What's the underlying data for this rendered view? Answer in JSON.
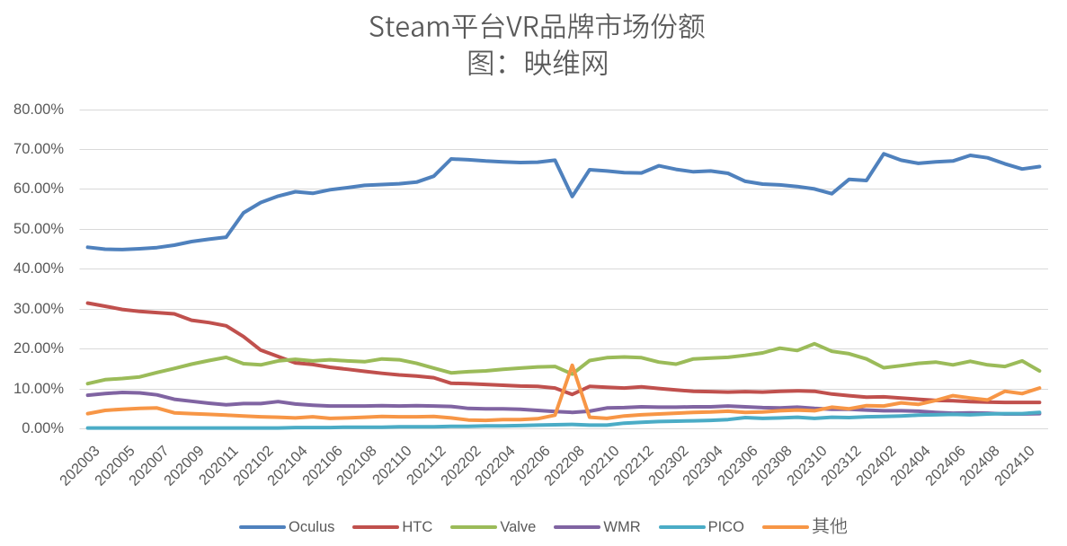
{
  "chart_data": {
    "type": "line",
    "title": "Steam平台VR品牌市场份额",
    "subtitle": "图：映维网",
    "categories": [
      "202003",
      "202004",
      "202005",
      "202006",
      "202007",
      "202008",
      "202009",
      "202010",
      "202011",
      "202012",
      "202102",
      "202103",
      "202104",
      "202105",
      "202106",
      "202107",
      "202108",
      "202109",
      "202110",
      "202111",
      "202112",
      "202201",
      "202202",
      "202203",
      "202204",
      "202205",
      "202206",
      "202207",
      "202208",
      "202209",
      "202210",
      "202211",
      "202212",
      "202301",
      "202302",
      "202303",
      "202304",
      "202305",
      "202306",
      "202307",
      "202308",
      "202309",
      "202310",
      "202311",
      "202312",
      "202401",
      "202402",
      "202403",
      "202404",
      "202405",
      "202406",
      "202407",
      "202408",
      "202409",
      "202410",
      "202411"
    ],
    "x_tick_step": 2,
    "ylim": [
      0,
      80
    ],
    "y_tick_interval": 10,
    "y_tick_labels": [
      "0.00%",
      "10.00%",
      "20.00%",
      "30.00%",
      "40.00%",
      "50.00%",
      "60.00%",
      "70.00%",
      "80.00%"
    ],
    "grid": "horizontal",
    "legend_position": "bottom",
    "series": [
      {
        "name": "Oculus",
        "color": "#4F81BD",
        "values": [
          45.4,
          44.9,
          44.8,
          45.0,
          45.3,
          45.9,
          46.8,
          47.4,
          47.9,
          54.0,
          56.6,
          58.2,
          59.3,
          58.9,
          59.8,
          60.3,
          60.9,
          61.1,
          61.3,
          61.7,
          63.2,
          67.5,
          67.3,
          67.0,
          66.8,
          66.6,
          66.7,
          67.2,
          58.1,
          64.8,
          64.5,
          64.1,
          64.0,
          65.8,
          64.9,
          64.3,
          64.5,
          63.9,
          61.9,
          61.2,
          61.0,
          60.6,
          60.0,
          58.8,
          62.4,
          62.1,
          68.8,
          67.2,
          66.4,
          66.8,
          67.0,
          68.4,
          67.8,
          66.3,
          65.0,
          65.6
        ]
      },
      {
        "name": "HTC",
        "color": "#C0504D",
        "values": [
          31.4,
          30.6,
          29.8,
          29.3,
          29.0,
          28.7,
          27.1,
          26.5,
          25.7,
          23.0,
          19.6,
          18.0,
          16.4,
          16.0,
          15.3,
          14.8,
          14.3,
          13.8,
          13.4,
          13.1,
          12.7,
          11.3,
          11.2,
          11.0,
          10.8,
          10.6,
          10.5,
          10.1,
          8.5,
          10.5,
          10.3,
          10.1,
          10.4,
          10.0,
          9.6,
          9.3,
          9.2,
          9.1,
          9.2,
          9.1,
          9.3,
          9.4,
          9.3,
          8.6,
          8.2,
          7.8,
          7.9,
          7.6,
          7.3,
          7.0,
          6.9,
          6.7,
          6.6,
          6.5,
          6.5,
          6.5
        ]
      },
      {
        "name": "Valve",
        "color": "#9BBB59",
        "values": [
          11.2,
          12.2,
          12.5,
          12.9,
          14.0,
          15.0,
          16.1,
          17.0,
          17.8,
          16.2,
          15.9,
          16.9,
          17.3,
          16.9,
          17.2,
          16.9,
          16.7,
          17.4,
          17.2,
          16.3,
          15.1,
          13.9,
          14.2,
          14.4,
          14.8,
          15.1,
          15.4,
          15.5,
          13.6,
          17.0,
          17.7,
          17.9,
          17.7,
          16.6,
          16.1,
          17.4,
          17.6,
          17.8,
          18.3,
          18.9,
          20.1,
          19.5,
          21.2,
          19.3,
          18.7,
          17.4,
          15.2,
          15.7,
          16.3,
          16.6,
          15.9,
          16.8,
          15.9,
          15.5,
          16.9,
          14.4
        ]
      },
      {
        "name": "WMR",
        "color": "#8064A2",
        "values": [
          8.3,
          8.7,
          9.0,
          8.9,
          8.4,
          7.3,
          6.8,
          6.3,
          5.9,
          6.2,
          6.2,
          6.7,
          6.1,
          5.8,
          5.6,
          5.6,
          5.6,
          5.7,
          5.6,
          5.7,
          5.6,
          5.5,
          5.0,
          4.9,
          4.9,
          4.8,
          4.5,
          4.2,
          4.0,
          4.3,
          5.1,
          5.2,
          5.4,
          5.3,
          5.3,
          5.4,
          5.4,
          5.6,
          5.4,
          5.2,
          5.1,
          5.3,
          5.0,
          4.8,
          4.8,
          4.6,
          4.4,
          4.4,
          4.3,
          4.0,
          3.8,
          3.9,
          3.8,
          3.6,
          3.6,
          3.7
        ]
      },
      {
        "name": "PICO",
        "color": "#4BACC6",
        "values": [
          0.1,
          0.1,
          0.1,
          0.1,
          0.1,
          0.1,
          0.1,
          0.1,
          0.1,
          0.1,
          0.1,
          0.1,
          0.2,
          0.2,
          0.2,
          0.3,
          0.3,
          0.3,
          0.4,
          0.4,
          0.4,
          0.5,
          0.5,
          0.6,
          0.6,
          0.7,
          0.8,
          0.9,
          1.0,
          0.8,
          0.8,
          1.3,
          1.5,
          1.7,
          1.8,
          1.9,
          2.0,
          2.2,
          2.7,
          2.5,
          2.6,
          2.8,
          2.5,
          2.8,
          2.7,
          2.9,
          3.0,
          3.1,
          3.3,
          3.4,
          3.5,
          3.4,
          3.6,
          3.7,
          3.7,
          4.0
        ]
      },
      {
        "name": "其他",
        "color": "#F79646",
        "values": [
          3.7,
          4.5,
          4.8,
          5.0,
          5.1,
          3.9,
          3.7,
          3.5,
          3.3,
          3.1,
          2.9,
          2.8,
          2.6,
          2.9,
          2.5,
          2.6,
          2.8,
          3.0,
          2.9,
          2.9,
          3.0,
          2.6,
          2.1,
          2.0,
          2.2,
          2.2,
          2.4,
          3.3,
          15.8,
          2.8,
          2.5,
          3.1,
          3.4,
          3.6,
          3.8,
          4.0,
          4.1,
          4.3,
          4.0,
          4.1,
          4.4,
          4.6,
          4.4,
          5.3,
          4.9,
          5.7,
          5.6,
          6.4,
          6.0,
          7.0,
          8.2,
          7.6,
          7.1,
          9.3,
          8.7,
          10.1
        ]
      }
    ],
    "text_color": "#595959",
    "gridline_color": "#D9D9D9",
    "background_color": "#FFFFFF"
  }
}
